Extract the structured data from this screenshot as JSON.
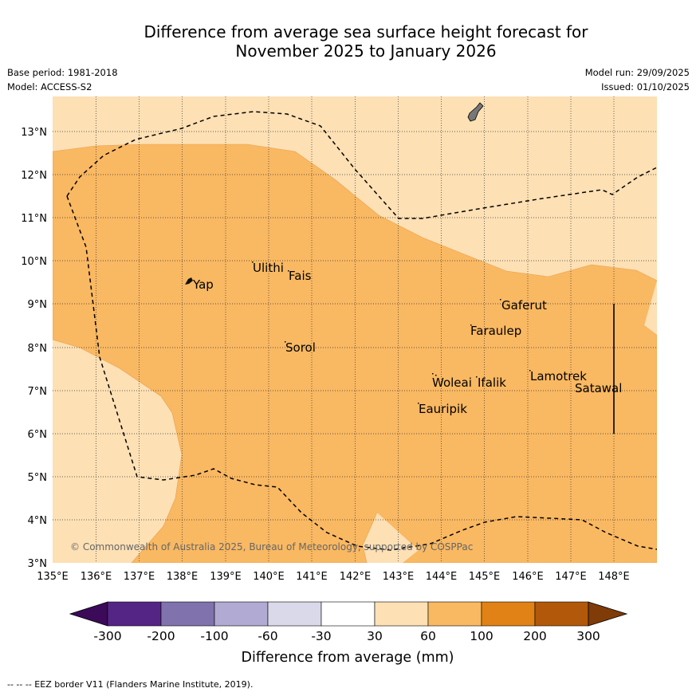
{
  "title": {
    "line1": "Difference from average sea surface height forecast for",
    "line2": "November 2025 to January 2026"
  },
  "meta": {
    "base_period": "Base period: 1981-2018",
    "model": "Model: ACCESS-S2",
    "model_run": "Model run: 29/09/2025",
    "issued": "Issued: 01/10/2025"
  },
  "map": {
    "lon_labels": [
      "135°E",
      "136°E",
      "137°E",
      "138°E",
      "139°E",
      "140°E",
      "141°E",
      "142°E",
      "143°E",
      "144°E",
      "145°E",
      "146°E",
      "147°E",
      "148°E"
    ],
    "lat_labels": [
      "3°N",
      "4°N",
      "5°N",
      "6°N",
      "7°N",
      "8°N",
      "9°N",
      "10°N",
      "11°N",
      "12°N",
      "13°N"
    ],
    "places": {
      "yap": "Yap",
      "ulithi": "Ulithi",
      "fais": "Fais",
      "sorol": "Sorol",
      "gaferut": "Gaferut",
      "faraulep": "Faraulep",
      "woleai": "Woleai",
      "ifalik": "Ifalik",
      "lamotrek": "Lamotrek",
      "satawal": "Satawal",
      "eauripik": "Eauripik"
    },
    "copyright": "© Commonwealth of Australia 2025, Bureau of Meteorology, supported by COSPPac",
    "colors": {
      "light_band": "#fde0b4",
      "mid_band": "#f9b862"
    }
  },
  "colorbar": {
    "ticks": [
      "-300",
      "-200",
      "-100",
      "-60",
      "-30",
      "30",
      "60",
      "100",
      "200",
      "300"
    ],
    "label": "Difference from average (mm)",
    "colors": [
      "#3b0a58",
      "#542585",
      "#7f72ad",
      "#b1aad2",
      "#d9d9ea",
      "#ffffff",
      "#fde0b4",
      "#f9b862",
      "#e08215",
      "#b2580a",
      "#7f3b08"
    ]
  },
  "footer": "-- -- -- EEZ border V11 (Flanders Marine Institute, 2019)."
}
